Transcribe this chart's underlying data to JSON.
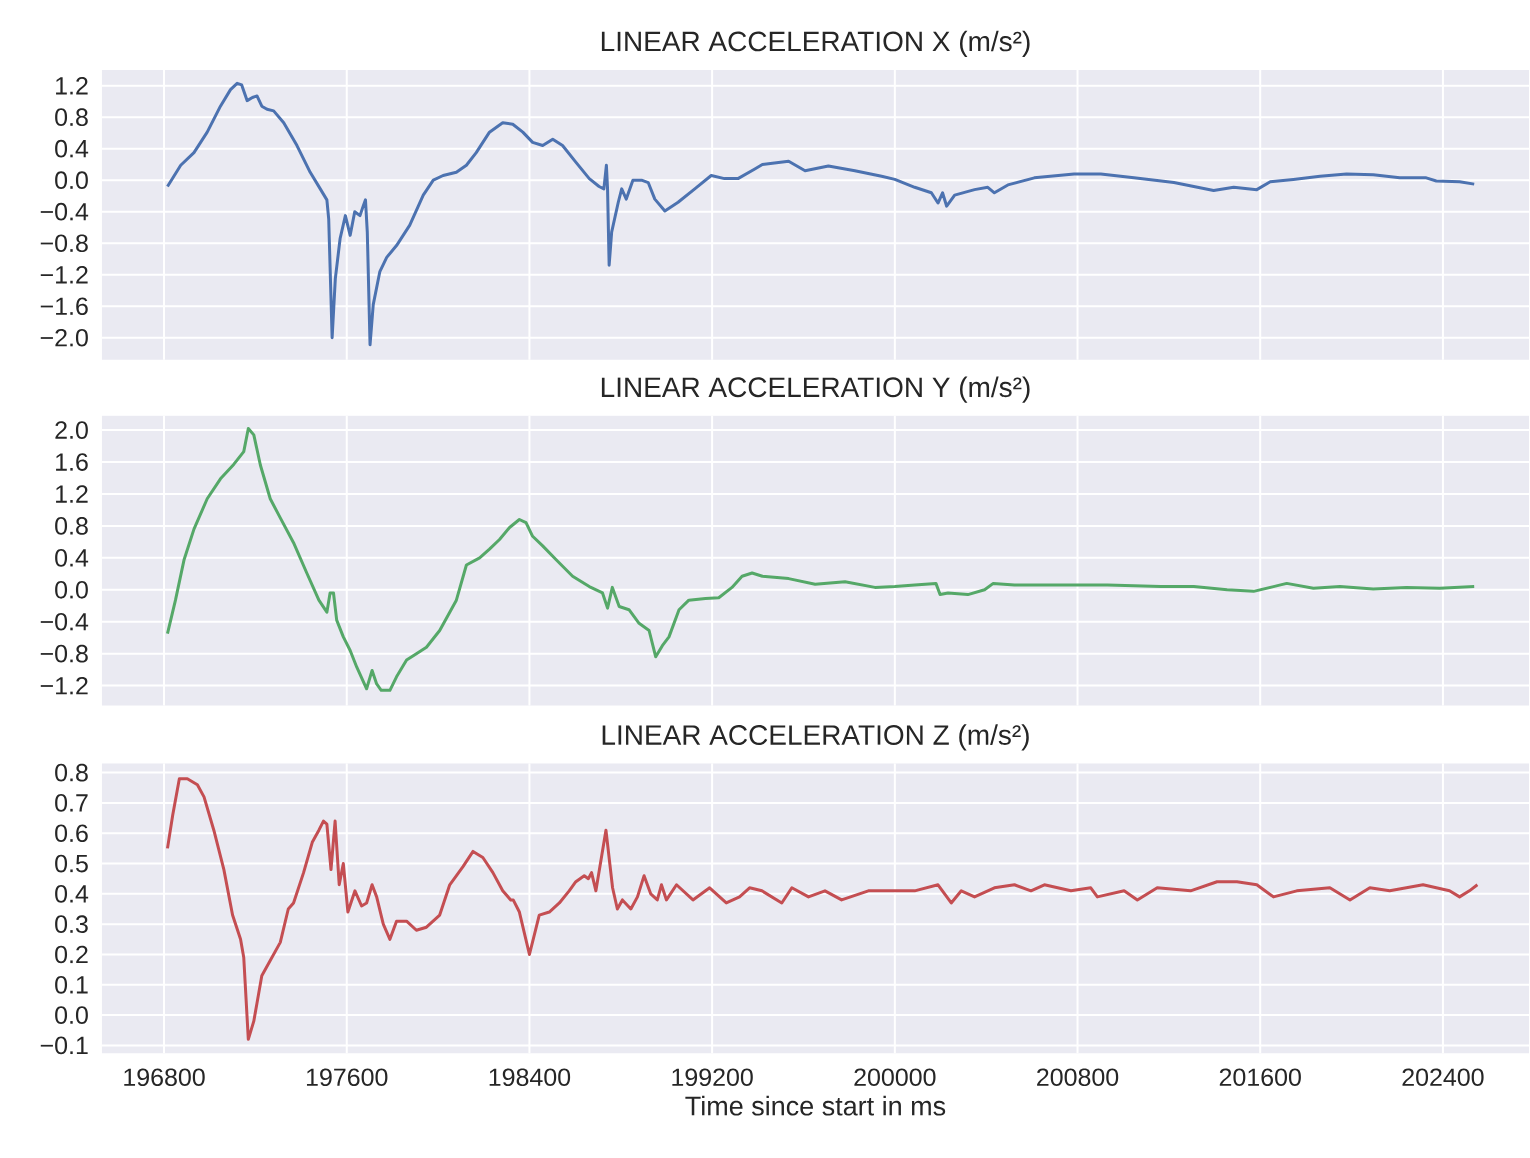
{
  "chart_data": [
    {
      "type": "line",
      "title": "LINEAR ACCELERATION X (m/s²)",
      "xlim": [
        196528,
        202777
      ],
      "xticks": [
        196800,
        197600,
        198400,
        199200,
        200000,
        200800,
        201600,
        202400
      ],
      "ylim": [
        -2.28,
        1.4
      ],
      "yticks": [
        {
          "value": -2.0,
          "label": "−2.0"
        },
        {
          "value": -1.6,
          "label": "−1.6"
        },
        {
          "value": -1.2,
          "label": "−1.2"
        },
        {
          "value": -0.8,
          "label": "−0.8"
        },
        {
          "value": -0.4,
          "label": "−0.4"
        },
        {
          "value": 0.0,
          "label": "0.0"
        },
        {
          "value": 0.4,
          "label": "0.4"
        },
        {
          "value": 0.8,
          "label": "0.8"
        },
        {
          "value": 1.2,
          "label": "1.2"
        }
      ],
      "grid": true,
      "tick_labels": "y",
      "series": [
        {
          "color": "#4c72b0",
          "x": [
            196815,
            196873,
            196931,
            196989,
            197047,
            197091,
            197120,
            197140,
            197164,
            197187,
            197207,
            197228,
            197251,
            197280,
            197324,
            197382,
            197440,
            197484,
            197513,
            197521,
            197536,
            197550,
            197571,
            197594,
            197615,
            197635,
            197658,
            197673,
            197682,
            197690,
            197702,
            197716,
            197745,
            197775,
            197818,
            197876,
            197935,
            197979,
            198022,
            198080,
            198124,
            198167,
            198225,
            198283,
            198327,
            198371,
            198414,
            198458,
            198502,
            198545,
            198603,
            198662,
            198705,
            198726,
            198737,
            198742,
            198749,
            198760,
            198789,
            198804,
            198824,
            198853,
            198891,
            198920,
            198949,
            198993,
            199051,
            199124,
            199196,
            199254,
            199313,
            199385,
            199420,
            199535,
            199607,
            199709,
            199825,
            199942,
            200000,
            200087,
            200160,
            200189,
            200209,
            200227,
            200262,
            200349,
            200407,
            200436,
            200495,
            200611,
            200785,
            200902,
            201047,
            201222,
            201396,
            201484,
            201585,
            201644,
            201745,
            201862,
            201978,
            202095,
            202211,
            202327,
            202371,
            202473,
            202537
          ],
          "values": [
            -0.08,
            0.19,
            0.35,
            0.61,
            0.94,
            1.15,
            1.23,
            1.21,
            1.01,
            1.05,
            1.07,
            0.94,
            0.9,
            0.88,
            0.73,
            0.44,
            0.1,
            -0.11,
            -0.25,
            -0.49,
            -2.0,
            -1.25,
            -0.74,
            -0.45,
            -0.7,
            -0.4,
            -0.45,
            -0.32,
            -0.25,
            -0.66,
            -2.09,
            -1.58,
            -1.16,
            -0.98,
            -0.83,
            -0.57,
            -0.19,
            0.0,
            0.06,
            0.1,
            0.19,
            0.35,
            0.61,
            0.73,
            0.71,
            0.61,
            0.48,
            0.44,
            0.52,
            0.44,
            0.23,
            0.02,
            -0.08,
            -0.11,
            0.19,
            -0.11,
            -1.08,
            -0.66,
            -0.28,
            -0.11,
            -0.24,
            0.0,
            0.0,
            -0.03,
            -0.24,
            -0.39,
            -0.28,
            -0.11,
            0.06,
            0.02,
            0.02,
            0.14,
            0.2,
            0.24,
            0.12,
            0.18,
            0.12,
            0.05,
            0.01,
            -0.09,
            -0.16,
            -0.29,
            -0.16,
            -0.33,
            -0.19,
            -0.12,
            -0.09,
            -0.16,
            -0.06,
            0.03,
            0.08,
            0.08,
            0.03,
            -0.03,
            -0.13,
            -0.09,
            -0.12,
            -0.02,
            0.01,
            0.05,
            0.08,
            0.07,
            0.03,
            0.03,
            -0.01,
            -0.02,
            -0.05
          ]
        }
      ]
    },
    {
      "type": "line",
      "title": "LINEAR ACCELERATION Y (m/s²)",
      "xlim": [
        196528,
        202777
      ],
      "xticks": [
        196800,
        197600,
        198400,
        199200,
        200000,
        200800,
        201600,
        202400
      ],
      "ylim": [
        -1.45,
        2.18
      ],
      "yticks": [
        {
          "value": -1.2,
          "label": "−1.2"
        },
        {
          "value": -0.8,
          "label": "−0.8"
        },
        {
          "value": -0.4,
          "label": "−0.4"
        },
        {
          "value": 0.0,
          "label": "0.0"
        },
        {
          "value": 0.4,
          "label": "0.4"
        },
        {
          "value": 0.8,
          "label": "0.8"
        },
        {
          "value": 1.2,
          "label": "1.2"
        },
        {
          "value": 1.6,
          "label": "1.6"
        },
        {
          "value": 2.0,
          "label": "2.0"
        }
      ],
      "grid": true,
      "tick_labels": "y",
      "series": [
        {
          "color": "#55a868",
          "x": [
            196815,
            196850,
            196888,
            196931,
            196989,
            197047,
            197105,
            197149,
            197169,
            197193,
            197222,
            197265,
            197309,
            197367,
            197425,
            197478,
            197513,
            197527,
            197542,
            197556,
            197585,
            197615,
            197644,
            197687,
            197711,
            197731,
            197751,
            197789,
            197818,
            197862,
            197905,
            197949,
            198007,
            198080,
            198124,
            198182,
            198225,
            198269,
            198313,
            198356,
            198385,
            198414,
            198458,
            198516,
            198589,
            198662,
            198720,
            198742,
            198763,
            198793,
            198836,
            198880,
            198924,
            198953,
            198982,
            199011,
            199055,
            199098,
            199171,
            199229,
            199287,
            199331,
            199375,
            199420,
            199535,
            199651,
            199782,
            199913,
            200000,
            200087,
            200180,
            200198,
            200233,
            200320,
            200393,
            200431,
            200524,
            200727,
            200931,
            201164,
            201309,
            201455,
            201571,
            201658,
            201716,
            201833,
            201949,
            202095,
            202240,
            202386,
            202537
          ],
          "values": [
            -0.55,
            -0.13,
            0.38,
            0.76,
            1.14,
            1.39,
            1.57,
            1.73,
            2.02,
            1.94,
            1.56,
            1.14,
            0.9,
            0.59,
            0.21,
            -0.13,
            -0.28,
            -0.04,
            -0.04,
            -0.38,
            -0.59,
            -0.76,
            -0.97,
            -1.24,
            -1.01,
            -1.18,
            -1.26,
            -1.26,
            -1.09,
            -0.88,
            -0.8,
            -0.72,
            -0.51,
            -0.13,
            0.31,
            0.4,
            0.51,
            0.63,
            0.78,
            0.88,
            0.84,
            0.67,
            0.55,
            0.38,
            0.17,
            0.04,
            -0.04,
            -0.23,
            0.03,
            -0.21,
            -0.25,
            -0.42,
            -0.51,
            -0.84,
            -0.7,
            -0.59,
            -0.25,
            -0.13,
            -0.11,
            -0.1,
            0.03,
            0.17,
            0.21,
            0.17,
            0.14,
            0.07,
            0.1,
            0.03,
            0.04,
            0.06,
            0.08,
            -0.06,
            -0.04,
            -0.06,
            0.0,
            0.08,
            0.06,
            0.06,
            0.06,
            0.04,
            0.04,
            0.0,
            -0.02,
            0.04,
            0.08,
            0.02,
            0.04,
            0.01,
            0.03,
            0.02,
            0.04
          ]
        }
      ]
    },
    {
      "type": "line",
      "title": "LINEAR ACCELERATION Z (m/s²)",
      "xlabel": "Time since start in ms",
      "xlim": [
        196528,
        202777
      ],
      "xticks": [
        196800,
        197600,
        198400,
        199200,
        200000,
        200800,
        201600,
        202400
      ],
      "ylim": [
        -0.126,
        0.83
      ],
      "yticks": [
        {
          "value": -0.1,
          "label": "−0.1"
        },
        {
          "value": 0.0,
          "label": "0.0"
        },
        {
          "value": 0.1,
          "label": "0.1"
        },
        {
          "value": 0.2,
          "label": "0.2"
        },
        {
          "value": 0.3,
          "label": "0.3"
        },
        {
          "value": 0.4,
          "label": "0.4"
        },
        {
          "value": 0.5,
          "label": "0.5"
        },
        {
          "value": 0.6,
          "label": "0.6"
        },
        {
          "value": 0.7,
          "label": "0.7"
        },
        {
          "value": 0.8,
          "label": "0.8"
        }
      ],
      "grid": true,
      "series": [
        {
          "color": "#c44e52",
          "x": [
            196815,
            196838,
            196867,
            196902,
            196946,
            196975,
            197018,
            197062,
            197100,
            197135,
            197149,
            197169,
            197193,
            197228,
            197265,
            197309,
            197344,
            197367,
            197411,
            197449,
            197478,
            197498,
            197513,
            197531,
            197549,
            197567,
            197585,
            197605,
            197636,
            197665,
            197687,
            197711,
            197731,
            197760,
            197789,
            197818,
            197862,
            197905,
            197949,
            198007,
            198051,
            198109,
            198153,
            198196,
            198240,
            198283,
            198318,
            198329,
            198356,
            198400,
            198443,
            198487,
            198531,
            198574,
            198603,
            198640,
            198658,
            198672,
            198691,
            198735,
            198764,
            198785,
            198807,
            198844,
            198873,
            198902,
            198931,
            198960,
            198978,
            199000,
            199044,
            199116,
            199189,
            199262,
            199320,
            199364,
            199418,
            199505,
            199549,
            199622,
            199694,
            199767,
            199884,
            200000,
            200087,
            200189,
            200247,
            200291,
            200349,
            200436,
            200524,
            200596,
            200655,
            200771,
            200858,
            200887,
            201004,
            201062,
            201149,
            201295,
            201411,
            201498,
            201585,
            201658,
            201760,
            201905,
            201993,
            202080,
            202167,
            202313,
            202429,
            202473,
            202516,
            202551
          ],
          "values": [
            0.55,
            0.66,
            0.78,
            0.78,
            0.76,
            0.72,
            0.61,
            0.48,
            0.33,
            0.25,
            0.19,
            -0.08,
            -0.02,
            0.13,
            0.18,
            0.24,
            0.35,
            0.37,
            0.47,
            0.57,
            0.61,
            0.64,
            0.63,
            0.48,
            0.64,
            0.43,
            0.5,
            0.34,
            0.41,
            0.36,
            0.37,
            0.43,
            0.39,
            0.3,
            0.25,
            0.31,
            0.31,
            0.28,
            0.29,
            0.33,
            0.43,
            0.49,
            0.54,
            0.52,
            0.47,
            0.41,
            0.38,
            0.38,
            0.34,
            0.2,
            0.33,
            0.34,
            0.37,
            0.41,
            0.44,
            0.46,
            0.45,
            0.47,
            0.41,
            0.61,
            0.42,
            0.35,
            0.38,
            0.35,
            0.39,
            0.46,
            0.4,
            0.38,
            0.43,
            0.38,
            0.43,
            0.38,
            0.42,
            0.37,
            0.39,
            0.42,
            0.41,
            0.37,
            0.42,
            0.39,
            0.41,
            0.38,
            0.41,
            0.41,
            0.41,
            0.43,
            0.37,
            0.41,
            0.39,
            0.42,
            0.43,
            0.41,
            0.43,
            0.41,
            0.42,
            0.39,
            0.41,
            0.38,
            0.42,
            0.41,
            0.44,
            0.44,
            0.43,
            0.39,
            0.41,
            0.42,
            0.38,
            0.42,
            0.41,
            0.43,
            0.41,
            0.39,
            0.41,
            0.43
          ]
        }
      ]
    }
  ]
}
